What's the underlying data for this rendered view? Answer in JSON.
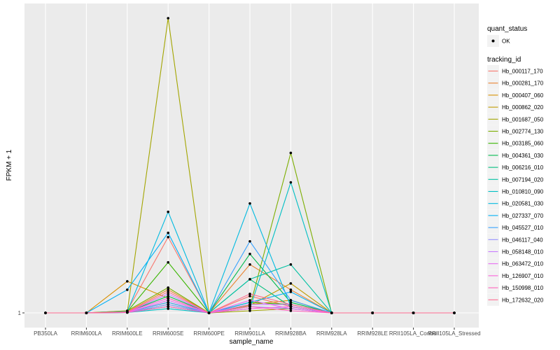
{
  "chart_data": {
    "type": "line",
    "xlabel": "sample_name",
    "ylabel": "FPKM + 1",
    "categories": [
      "PB350LA",
      "RRIM600LA",
      "RRIM600LE",
      "RRIM600SE",
      "RRIM600PE",
      "RRIM901LA",
      "RRIM928BA",
      "RRIM928LA",
      "RRIM928LE",
      "RRII105LA_Control",
      "RRII105LA_Stressed"
    ],
    "y_ticks": [
      "1"
    ],
    "ylim": [
      0.96,
      8.3
    ],
    "grid": true,
    "legend_position": "right",
    "point_legend": {
      "title": "quant_status",
      "entries": [
        {
          "label": "OK"
        }
      ]
    },
    "series_legend_title": "tracking_id",
    "series": [
      {
        "name": "Hb_000117_170",
        "color": "#F8766D",
        "values": [
          1,
          1,
          1.05,
          2.8,
          1,
          1.4,
          1.15,
          1,
          1,
          1,
          1
        ]
      },
      {
        "name": "Hb_000281_170",
        "color": "#EA8331",
        "values": [
          1,
          1,
          1.03,
          1.55,
          1,
          2.15,
          1.55,
          1,
          1,
          1,
          1
        ]
      },
      {
        "name": "Hb_000407_060",
        "color": "#D89000",
        "values": [
          1,
          1,
          1.75,
          1.35,
          1,
          1.2,
          1.3,
          1,
          1,
          1,
          1
        ]
      },
      {
        "name": "Hb_000862_020",
        "color": "#C09B00",
        "values": [
          1,
          1,
          1.02,
          1.25,
          1,
          1.18,
          1.7,
          1,
          1,
          1,
          1
        ]
      },
      {
        "name": "Hb_001687_050",
        "color": "#A3A500",
        "values": [
          1,
          1,
          1.02,
          8.0,
          1,
          1.05,
          1.1,
          1,
          1,
          1,
          1
        ]
      },
      {
        "name": "Hb_002774_130",
        "color": "#7CAE00",
        "values": [
          1,
          1,
          1.05,
          1.6,
          1,
          1.15,
          4.8,
          1,
          1,
          1,
          1
        ]
      },
      {
        "name": "Hb_003185_060",
        "color": "#39B600",
        "values": [
          1,
          1,
          1.03,
          2.2,
          1,
          1.25,
          1.2,
          1,
          1,
          1,
          1
        ]
      },
      {
        "name": "Hb_004361_030",
        "color": "#00BB4E",
        "values": [
          1,
          1,
          1.02,
          1.4,
          1,
          2.4,
          1.25,
          1,
          1,
          1,
          1
        ]
      },
      {
        "name": "Hb_006216_010",
        "color": "#00BF7D",
        "values": [
          1,
          1,
          1.01,
          1.2,
          1,
          1.8,
          1.15,
          1,
          1,
          1,
          1
        ]
      },
      {
        "name": "Hb_007194_020",
        "color": "#00C1A3",
        "values": [
          1,
          1,
          1.02,
          1.15,
          1,
          1.8,
          2.15,
          1,
          1,
          1,
          1
        ]
      },
      {
        "name": "Hb_010810_090",
        "color": "#00BFC4",
        "values": [
          1,
          1,
          1.01,
          1.1,
          1,
          1.1,
          4.1,
          1,
          1,
          1,
          1
        ]
      },
      {
        "name": "Hb_020581_030",
        "color": "#00BAE0",
        "values": [
          1,
          1,
          1.03,
          3.4,
          1,
          3.6,
          1.15,
          1,
          1,
          1,
          1
        ]
      },
      {
        "name": "Hb_027337_070",
        "color": "#00B0F6",
        "values": [
          1,
          1,
          1.55,
          2.9,
          1,
          1.25,
          1.5,
          1,
          1,
          1,
          1
        ]
      },
      {
        "name": "Hb_045527_010",
        "color": "#35A2FF",
        "values": [
          1,
          1,
          1.02,
          1.25,
          1,
          2.7,
          1.3,
          1,
          1,
          1,
          1
        ]
      },
      {
        "name": "Hb_046117_040",
        "color": "#9590FF",
        "values": [
          1,
          1,
          1.01,
          1.2,
          1,
          1.15,
          1.1,
          1,
          1,
          1,
          1
        ]
      },
      {
        "name": "Hb_058148_010",
        "color": "#C77CFF",
        "values": [
          1,
          1,
          1.02,
          1.45,
          1,
          1.2,
          1.2,
          1,
          1,
          1,
          1
        ]
      },
      {
        "name": "Hb_063472_010",
        "color": "#E76BF3",
        "values": [
          1,
          1,
          1.01,
          1.3,
          1,
          1.3,
          1.1,
          1,
          1,
          1,
          1
        ]
      },
      {
        "name": "Hb_126907_010",
        "color": "#FA62DB",
        "values": [
          1,
          1,
          1.02,
          1.35,
          1,
          1.1,
          1.15,
          1,
          1,
          1,
          1
        ]
      },
      {
        "name": "Hb_150998_010",
        "color": "#FF62BC",
        "values": [
          1,
          1,
          1.01,
          1.15,
          1,
          1.15,
          1.05,
          1,
          1,
          1,
          1
        ]
      },
      {
        "name": "Hb_172632_020",
        "color": "#FF6C91",
        "values": [
          1,
          1,
          1.02,
          1.5,
          1,
          1.45,
          1.2,
          1,
          1,
          1,
          1
        ]
      }
    ]
  }
}
